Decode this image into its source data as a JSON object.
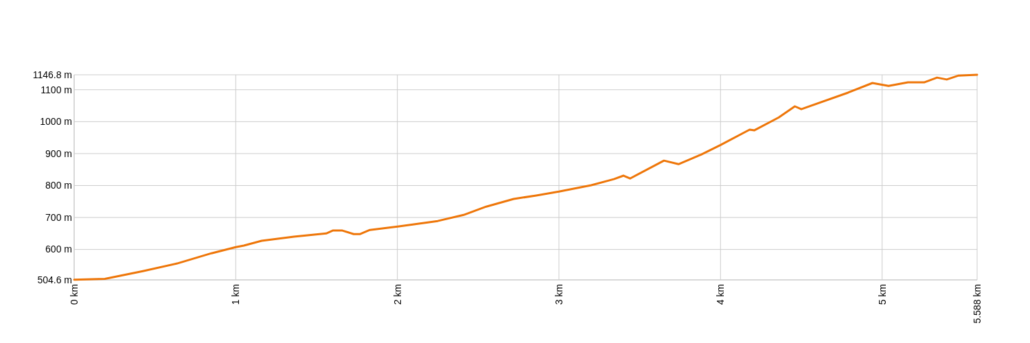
{
  "chart_data": {
    "type": "line",
    "x": [
      0,
      0.19,
      0.425,
      0.637,
      0.85,
      1.0,
      1.05,
      1.16,
      1.36,
      1.56,
      1.6,
      1.66,
      1.73,
      1.77,
      1.83,
      2.01,
      2.25,
      2.41,
      2.55,
      2.72,
      2.86,
      3.0,
      3.2,
      3.34,
      3.4,
      3.44,
      3.65,
      3.74,
      3.88,
      4.0,
      4.18,
      4.21,
      4.36,
      4.46,
      4.5,
      4.79,
      4.94,
      5.04,
      5.16,
      5.26,
      5.34,
      5.4,
      5.47,
      5.588
    ],
    "series": [
      {
        "color": "#ee7609",
        "values": [
          505,
          508,
          532,
          556,
          588,
          607,
          612,
          627,
          640,
          650,
          659,
          659,
          648,
          648,
          661,
          672,
          689,
          708,
          734,
          758,
          769,
          781,
          801,
          820,
          831,
          822,
          878,
          867,
          897,
          927,
          975,
          973,
          1013,
          1048,
          1039,
          1091,
          1121,
          1112,
          1123,
          1123,
          1138,
          1132,
          1144,
          1146.8
        ]
      }
    ],
    "xlim": [
      0,
      5.588
    ],
    "ylim": [
      504.6,
      1146.8
    ],
    "xticks": [
      {
        "value": 0,
        "label": "0 km"
      },
      {
        "value": 1,
        "label": "1 km"
      },
      {
        "value": 2,
        "label": "2 km"
      },
      {
        "value": 3,
        "label": "3 km"
      },
      {
        "value": 4,
        "label": "4 km"
      },
      {
        "value": 5,
        "label": "5 km"
      },
      {
        "value": 5.588,
        "label": "5.588 km"
      }
    ],
    "yticks": [
      {
        "value": 504.6,
        "label": "504.6 m"
      },
      {
        "value": 600,
        "label": "600 m"
      },
      {
        "value": 700,
        "label": "700 m"
      },
      {
        "value": 800,
        "label": "800 m"
      },
      {
        "value": 900,
        "label": "900 m"
      },
      {
        "value": 1000,
        "label": "1000 m"
      },
      {
        "value": 1100,
        "label": "1100 m"
      },
      {
        "value": 1146.8,
        "label": "1146.8 m"
      }
    ],
    "grid": true
  }
}
